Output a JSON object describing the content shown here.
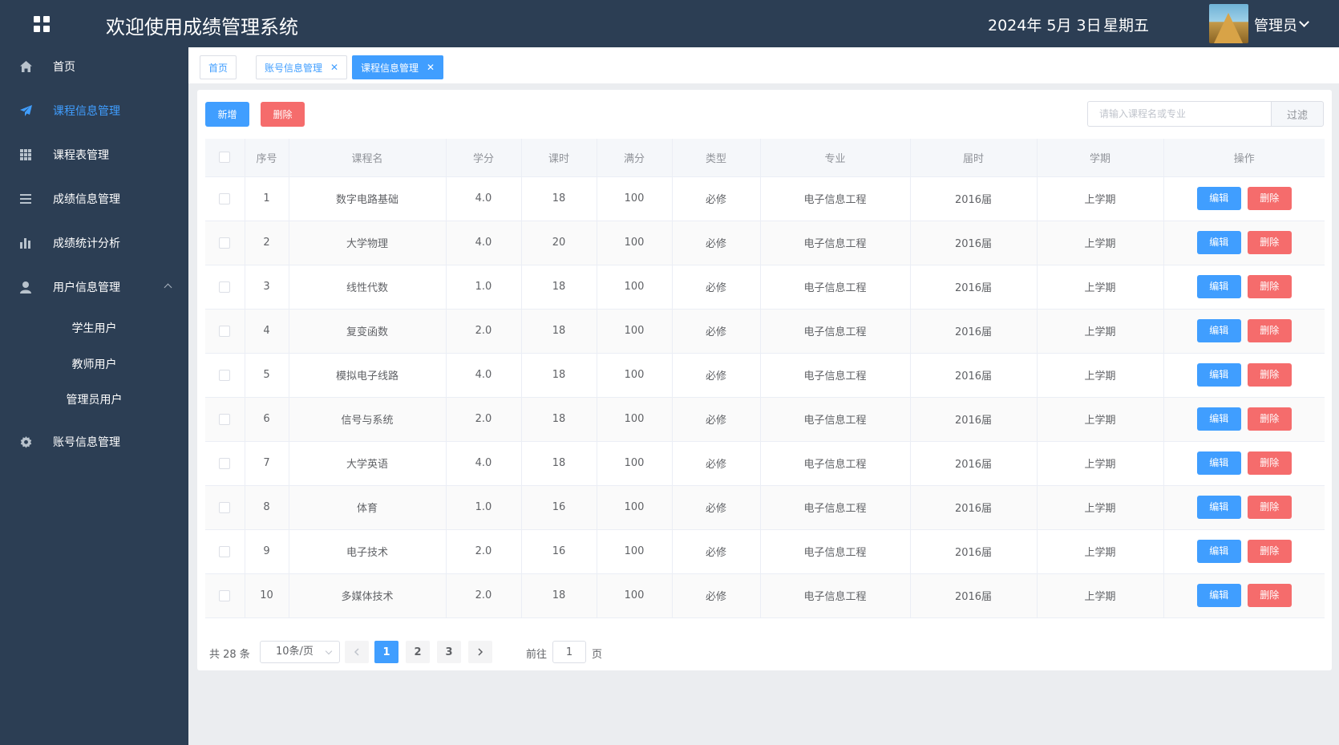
{
  "header": {
    "app_title": "欢迎使用成绩管理系统",
    "date": "2024年 5月 3日",
    "weekday": "星期五",
    "user_name": "管理员"
  },
  "sidebar": {
    "items": [
      {
        "label": "首页",
        "icon": "home-icon"
      },
      {
        "label": "课程信息管理",
        "icon": "paper-plane-icon",
        "active": true
      },
      {
        "label": "课程表管理",
        "icon": "grid-icon"
      },
      {
        "label": "成绩信息管理",
        "icon": "list-icon"
      },
      {
        "label": "成绩统计分析",
        "icon": "bar-chart-icon"
      },
      {
        "label": "用户信息管理",
        "icon": "user-icon",
        "expanded": true
      },
      {
        "label": "账号信息管理",
        "icon": "gear-icon"
      }
    ],
    "sub_items": [
      "学生用户",
      "教师用户",
      "管理员用户"
    ]
  },
  "tabs": [
    {
      "label": "首页",
      "closable": false
    },
    {
      "label": "账号信息管理",
      "closable": true
    },
    {
      "label": "课程信息管理",
      "closable": true,
      "active": true
    }
  ],
  "toolbar": {
    "add_label": "新增",
    "delete_label": "删除",
    "search_placeholder": "请输入课程名或专业",
    "filter_label": "过滤"
  },
  "table": {
    "columns": [
      "序号",
      "课程名",
      "学分",
      "课时",
      "满分",
      "类型",
      "专业",
      "届时",
      "学期",
      "操作"
    ],
    "edit_label": "编辑",
    "delete_label": "删除",
    "rows": [
      {
        "no": "1",
        "name": "数字电路基础",
        "credit": "4.0",
        "hours": "18",
        "full": "100",
        "type": "必修",
        "major": "电子信息工程",
        "session": "2016届",
        "term": "上学期"
      },
      {
        "no": "2",
        "name": "大学物理",
        "credit": "4.0",
        "hours": "20",
        "full": "100",
        "type": "必修",
        "major": "电子信息工程",
        "session": "2016届",
        "term": "上学期"
      },
      {
        "no": "3",
        "name": "线性代数",
        "credit": "1.0",
        "hours": "18",
        "full": "100",
        "type": "必修",
        "major": "电子信息工程",
        "session": "2016届",
        "term": "上学期"
      },
      {
        "no": "4",
        "name": "复变函数",
        "credit": "2.0",
        "hours": "18",
        "full": "100",
        "type": "必修",
        "major": "电子信息工程",
        "session": "2016届",
        "term": "上学期"
      },
      {
        "no": "5",
        "name": "模拟电子线路",
        "credit": "4.0",
        "hours": "18",
        "full": "100",
        "type": "必修",
        "major": "电子信息工程",
        "session": "2016届",
        "term": "上学期"
      },
      {
        "no": "6",
        "name": "信号与系统",
        "credit": "2.0",
        "hours": "18",
        "full": "100",
        "type": "必修",
        "major": "电子信息工程",
        "session": "2016届",
        "term": "上学期"
      },
      {
        "no": "7",
        "name": "大学英语",
        "credit": "4.0",
        "hours": "18",
        "full": "100",
        "type": "必修",
        "major": "电子信息工程",
        "session": "2016届",
        "term": "上学期"
      },
      {
        "no": "8",
        "name": "体育",
        "credit": "1.0",
        "hours": "16",
        "full": "100",
        "type": "必修",
        "major": "电子信息工程",
        "session": "2016届",
        "term": "上学期"
      },
      {
        "no": "9",
        "name": "电子技术",
        "credit": "2.0",
        "hours": "16",
        "full": "100",
        "type": "必修",
        "major": "电子信息工程",
        "session": "2016届",
        "term": "上学期"
      },
      {
        "no": "10",
        "name": "多媒体技术",
        "credit": "2.0",
        "hours": "18",
        "full": "100",
        "type": "必修",
        "major": "电子信息工程",
        "session": "2016届",
        "term": "上学期"
      }
    ]
  },
  "pagination": {
    "total_text": "共 28 条",
    "page_size": "10条/页",
    "pages": [
      "1",
      "2",
      "3"
    ],
    "current_page": "1",
    "goto_prefix": "前往",
    "goto_value": "1",
    "goto_suffix": "页"
  },
  "colors": {
    "primary": "#409eff",
    "danger": "#f56c6c",
    "sidebar_bg": "#2c3e54"
  }
}
